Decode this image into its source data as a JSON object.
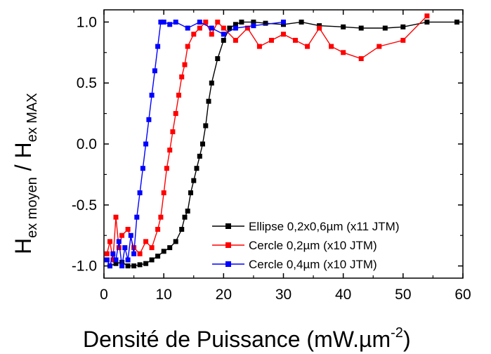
{
  "chart_data": {
    "type": "scatter",
    "title": "",
    "xlabel": {
      "main": "Densité de Puissance (mW.µm",
      "sup": "-2",
      "end": ")"
    },
    "ylabel": {
      "h1": "H",
      "sub1": "ex moyen",
      "slash": " / H",
      "sub2": "ex MAX"
    },
    "xlim": [
      0,
      60
    ],
    "ylim": [
      -1.1,
      1.1
    ],
    "xticks": [
      "0",
      "10",
      "20",
      "30",
      "40",
      "50",
      "60"
    ],
    "yticks": [
      "1.0",
      "0.5",
      "0.0",
      "-0.5",
      "-1.0"
    ],
    "legend_position": "lower-right",
    "series": [
      {
        "name": "Ellipse 0,2x0,6µm (x11 JTM)",
        "color": "#000000",
        "marker": "square",
        "x": [
          0.5,
          1,
          2,
          3,
          4,
          5,
          6,
          7,
          8,
          9,
          10,
          11,
          12,
          13,
          13.5,
          14,
          14.5,
          15,
          15.5,
          16,
          16.5,
          17,
          17.5,
          18,
          19,
          20,
          21,
          22,
          23,
          25,
          27,
          30,
          33,
          36,
          40,
          43,
          47,
          50,
          54,
          59
        ],
        "y": [
          -0.95,
          -1.0,
          -0.98,
          -0.97,
          -1.0,
          -1.0,
          -0.99,
          -0.98,
          -0.95,
          -0.92,
          -0.88,
          -0.85,
          -0.8,
          -0.7,
          -0.6,
          -0.55,
          -0.4,
          -0.3,
          -0.2,
          -0.1,
          0.0,
          0.15,
          0.35,
          0.5,
          0.7,
          0.85,
          0.95,
          0.98,
          1.0,
          1.0,
          0.99,
          0.98,
          1.0,
          0.97,
          0.96,
          0.95,
          0.95,
          0.96,
          1.0,
          1.0
        ]
      },
      {
        "name": "Cercle 0,2µm (x10 JTM)",
        "color": "#ff0000",
        "marker": "square",
        "x": [
          0.5,
          1,
          1.5,
          2,
          2.5,
          3,
          4,
          5,
          6,
          7,
          8,
          9,
          9.5,
          10,
          10.5,
          11,
          11.5,
          12,
          12.5,
          13,
          13.5,
          14,
          15,
          16,
          17,
          18,
          19,
          20,
          22,
          24,
          26,
          28,
          30,
          32,
          34,
          36,
          38,
          40,
          43,
          46,
          50,
          54
        ],
        "y": [
          -0.9,
          -0.8,
          -0.95,
          -0.6,
          -0.85,
          -0.75,
          -0.7,
          -0.85,
          -0.9,
          -0.8,
          -0.85,
          -0.7,
          -0.6,
          -0.4,
          -0.2,
          -0.05,
          0.1,
          0.25,
          0.4,
          0.55,
          0.65,
          0.8,
          0.9,
          0.95,
          1.0,
          0.9,
          1.0,
          0.95,
          0.85,
          0.95,
          0.8,
          0.85,
          0.9,
          0.85,
          0.8,
          0.95,
          0.8,
          0.75,
          0.7,
          0.8,
          0.85,
          1.05
        ]
      },
      {
        "name": "Cercle 0,4µm (x10 JTM)",
        "color": "#0000ff",
        "marker": "square",
        "x": [
          0.5,
          1,
          1.5,
          2,
          2.5,
          3,
          3.5,
          4,
          4.5,
          5,
          5.5,
          6,
          6.5,
          7,
          7.5,
          8,
          8.5,
          9,
          9.5,
          10,
          11,
          12,
          14,
          16,
          18,
          20,
          22,
          25,
          30
        ],
        "y": [
          -0.95,
          -1.0,
          -0.9,
          -0.95,
          -0.8,
          -1.0,
          -0.85,
          -0.95,
          -0.75,
          -0.9,
          -0.6,
          -0.4,
          -0.2,
          0.0,
          0.2,
          0.4,
          0.6,
          0.8,
          1.0,
          1.0,
          0.98,
          1.0,
          0.95,
          1.0,
          0.95,
          0.9,
          0.95,
          0.97,
          1.0
        ]
      }
    ]
  }
}
